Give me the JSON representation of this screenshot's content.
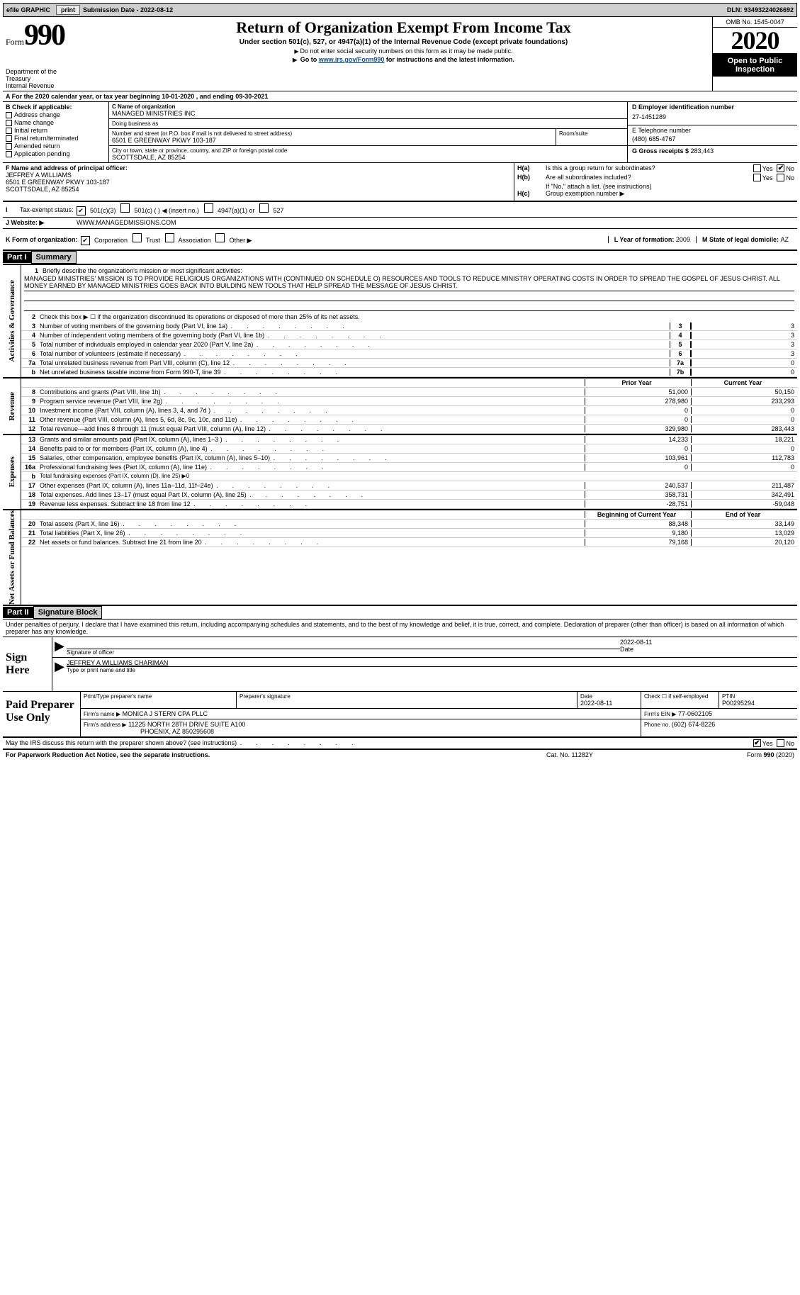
{
  "topbar": {
    "efile_label": "efile GRAPHIC",
    "print_btn": "print",
    "submission_label": "Submission Date - ",
    "submission_date": "2022-08-12",
    "dln_label": "DLN: ",
    "dln": "93493224026692"
  },
  "header": {
    "form_word": "Form",
    "form_num": "990",
    "dept1": "Department of the",
    "dept2": "Treasury",
    "dept3": "Internal Revenue",
    "title": "Return of Organization Exempt From Income Tax",
    "subtitle": "Under section 501(c), 527, or 4947(a)(1) of the Internal Revenue Code (except private foundations)",
    "instr1": "Do not enter social security numbers on this form as it may be made public.",
    "instr2_pre": "Go to ",
    "instr2_link": "www.irs.gov/Form990",
    "instr2_post": " for instructions and the latest information.",
    "omb": "OMB No. 1545-0047",
    "year": "2020",
    "inspection1": "Open to Public",
    "inspection2": "Inspection"
  },
  "period": {
    "prefix": "A For the 2020 calendar year, or tax year beginning ",
    "begin": "10-01-2020",
    "mid": "   , and ending ",
    "end": "09-30-2021"
  },
  "boxB": {
    "header": "B Check if applicable:",
    "items": [
      "Address change",
      "Name change",
      "Initial return",
      "Final return/terminated",
      "Amended return",
      "Application pending"
    ],
    "checked": [
      false,
      false,
      false,
      false,
      false,
      false
    ]
  },
  "boxC": {
    "name_label": "C Name of organization",
    "name": "MANAGED MINISTRIES INC",
    "dba_label": "Doing business as",
    "dba": "",
    "addr_label": "Number and street (or P.O. box if mail is not delivered to street address)",
    "room_label": "Room/suite",
    "addr": "6501 E GREENWAY PKWY 103-187",
    "city_label": "City or town, state or province, country, and ZIP or foreign postal code",
    "city": "SCOTTSDALE, AZ  85254"
  },
  "boxD": {
    "label": "D Employer identification number",
    "value": "27-1451289"
  },
  "boxE": {
    "label": "E Telephone number",
    "value": "(480) 685-4767"
  },
  "boxG": {
    "label": "G Gross receipts $ ",
    "value": "283,443"
  },
  "boxF": {
    "label": "F Name and address of principal officer:",
    "name": "JEFFREY A WILLIAMS",
    "addr1": "6501 E GREENWAY PKWY 103-187",
    "addr2": "SCOTTSDALE, AZ  85254"
  },
  "boxH": {
    "a_label": "H(a)",
    "a_text": "Is this a group return for subordinates?",
    "a_yes": false,
    "a_no": true,
    "b_label": "H(b)",
    "b_text": "Are all subordinates included?",
    "b_yes": false,
    "b_no": false,
    "b_note": "If \"No,\" attach a list. (see instructions)",
    "c_label": "H(c)",
    "c_text": "Group exemption number ▶"
  },
  "boxI": {
    "label": "Tax-exempt status:",
    "opts": [
      "501(c)(3)",
      "501(c) (  ) ◀ (insert no.)",
      "4947(a)(1) or",
      "527"
    ],
    "checked": [
      true,
      false,
      false,
      false
    ]
  },
  "boxJ": {
    "label": "J    Website: ▶",
    "value": "WWW.MANAGEDMISSIONS.COM"
  },
  "boxK": {
    "label": "K Form of organization:",
    "opts": [
      "Corporation",
      "Trust",
      "Association",
      "Other ▶"
    ],
    "checked": [
      true,
      false,
      false,
      false
    ]
  },
  "boxL": {
    "label": "L Year of formation: ",
    "value": "2009"
  },
  "boxM": {
    "label": "M State of legal domicile: ",
    "value": "AZ"
  },
  "parts": {
    "p1_num": "Part I",
    "p1_title": "Summary",
    "p2_num": "Part II",
    "p2_title": "Signature Block"
  },
  "sideLabels": {
    "gov": "Activities & Governance",
    "rev": "Revenue",
    "exp": "Expenses",
    "net": "Net Assets or Fund Balances"
  },
  "summary": {
    "l1_label": "Briefly describe the organization's mission or most significant activities:",
    "l1_text": "MANAGED MINISTRIES' MISSION IS TO PROVIDE RELIGIOUS ORGANIZATIONS WITH (CONTINUED ON SCHEDULE O) RESOURCES AND TOOLS TO REDUCE MINISTRY OPERATING COSTS IN ORDER TO SPREAD THE GOSPEL OF JESUS CHRIST. ALL MONEY EARNED BY MANAGED MINISTRIES GOES BACK INTO BUILDING NEW TOOLS THAT HELP SPREAD THE MESSAGE OF JESUS CHRIST.",
    "l2": "Check this box ▶ ☐  if the organization discontinued its operations or disposed of more than 25% of its net assets.",
    "lines_gov": [
      {
        "n": "3",
        "t": "Number of voting members of the governing body (Part VI, line 1a)",
        "box": "3",
        "v": "3"
      },
      {
        "n": "4",
        "t": "Number of independent voting members of the governing body (Part VI, line 1b)",
        "box": "4",
        "v": "3"
      },
      {
        "n": "5",
        "t": "Total number of individuals employed in calendar year 2020 (Part V, line 2a)",
        "box": "5",
        "v": "3"
      },
      {
        "n": "6",
        "t": "Total number of volunteers (estimate if necessary)",
        "box": "6",
        "v": "3"
      },
      {
        "n": "7a",
        "t": "Total unrelated business revenue from Part VIII, column (C), line 12",
        "box": "7a",
        "v": "0"
      },
      {
        "n": "b",
        "t": "Net unrelated business taxable income from Form 990-T, line 39",
        "box": "7b",
        "v": "0"
      }
    ],
    "col_prior": "Prior Year",
    "col_current": "Current Year",
    "col_boy": "Beginning of Current Year",
    "col_eoy": "End of Year",
    "lines_rev": [
      {
        "n": "8",
        "t": "Contributions and grants (Part VIII, line 1h)",
        "p": "51,000",
        "c": "50,150"
      },
      {
        "n": "9",
        "t": "Program service revenue (Part VIII, line 2g)",
        "p": "278,980",
        "c": "233,293"
      },
      {
        "n": "10",
        "t": "Investment income (Part VIII, column (A), lines 3, 4, and 7d )",
        "p": "0",
        "c": "0"
      },
      {
        "n": "11",
        "t": "Other revenue (Part VIII, column (A), lines 5, 6d, 8c, 9c, 10c, and 11e)",
        "p": "0",
        "c": "0"
      },
      {
        "n": "12",
        "t": "Total revenue—add lines 8 through 11 (must equal Part VIII, column (A), line 12)",
        "p": "329,980",
        "c": "283,443"
      }
    ],
    "lines_exp": [
      {
        "n": "13",
        "t": "Grants and similar amounts paid (Part IX, column (A), lines 1–3 )",
        "p": "14,233",
        "c": "18,221"
      },
      {
        "n": "14",
        "t": "Benefits paid to or for members (Part IX, column (A), line 4)",
        "p": "0",
        "c": "0"
      },
      {
        "n": "15",
        "t": "Salaries, other compensation, employee benefits (Part IX, column (A), lines 5–10)",
        "p": "103,961",
        "c": "112,783"
      },
      {
        "n": "16a",
        "t": "Professional fundraising fees (Part IX, column (A), line 11e)",
        "p": "0",
        "c": "0"
      }
    ],
    "l16b": {
      "n": "b",
      "t": "Total fundraising expenses (Part IX, column (D), line 25) ▶0"
    },
    "lines_exp2": [
      {
        "n": "17",
        "t": "Other expenses (Part IX, column (A), lines 11a–11d, 11f–24e)",
        "p": "240,537",
        "c": "211,487"
      },
      {
        "n": "18",
        "t": "Total expenses. Add lines 13–17 (must equal Part IX, column (A), line 25)",
        "p": "358,731",
        "c": "342,491"
      },
      {
        "n": "19",
        "t": "Revenue less expenses. Subtract line 18 from line 12",
        "p": "-28,751",
        "c": "-59,048"
      }
    ],
    "lines_net": [
      {
        "n": "20",
        "t": "Total assets (Part X, line 16)",
        "p": "88,348",
        "c": "33,149"
      },
      {
        "n": "21",
        "t": "Total liabilities (Part X, line 26)",
        "p": "9,180",
        "c": "13,029"
      },
      {
        "n": "22",
        "t": "Net assets or fund balances. Subtract line 21 from line 20",
        "p": "79,168",
        "c": "20,120"
      }
    ]
  },
  "penalties": "Under penalties of perjury, I declare that I have examined this return, including accompanying schedules and statements, and to the best of my knowledge and belief, it is true, correct, and complete. Declaration of preparer (other than officer) is based on all information of which preparer has any knowledge.",
  "sign": {
    "heading": "Sign Here",
    "sig_label": "Signature of officer",
    "date_label": "Date",
    "date": "2022-08-11",
    "name": "JEFFREY A WILLIAMS  CHARIMAN",
    "name_label": "Type or print name and title"
  },
  "prep": {
    "heading": "Paid Preparer Use Only",
    "name_label": "Print/Type preparer's name",
    "sig_label": "Preparer's signature",
    "date_label": "Date",
    "date": "2022-08-11",
    "check_label": "Check ☐ if self-employed",
    "ptin_label": "PTIN",
    "ptin": "P00295294",
    "firm_name_label": "Firm's name    ▶",
    "firm_name": "MONICA J STERN CPA PLLC",
    "firm_ein_label": "Firm's EIN ▶",
    "firm_ein": "77-0602105",
    "firm_addr_label": "Firm's address ▶",
    "firm_addr1": "11225 NORTH 28TH DRIVE SUITE A100",
    "firm_addr2": "PHOENIX, AZ  850295608",
    "phone_label": "Phone no. ",
    "phone": "(602) 674-8226"
  },
  "discuss": {
    "text": "May the IRS discuss this return with the preparer shown above? (see instructions)",
    "yes": true,
    "no": false
  },
  "footer": {
    "left": "For Paperwork Reduction Act Notice, see the separate instructions.",
    "mid": "Cat. No. 11282Y",
    "right_pre": "Form ",
    "right_form": "990",
    "right_post": " (2020)"
  },
  "yesLabel": "Yes",
  "noLabel": "No"
}
